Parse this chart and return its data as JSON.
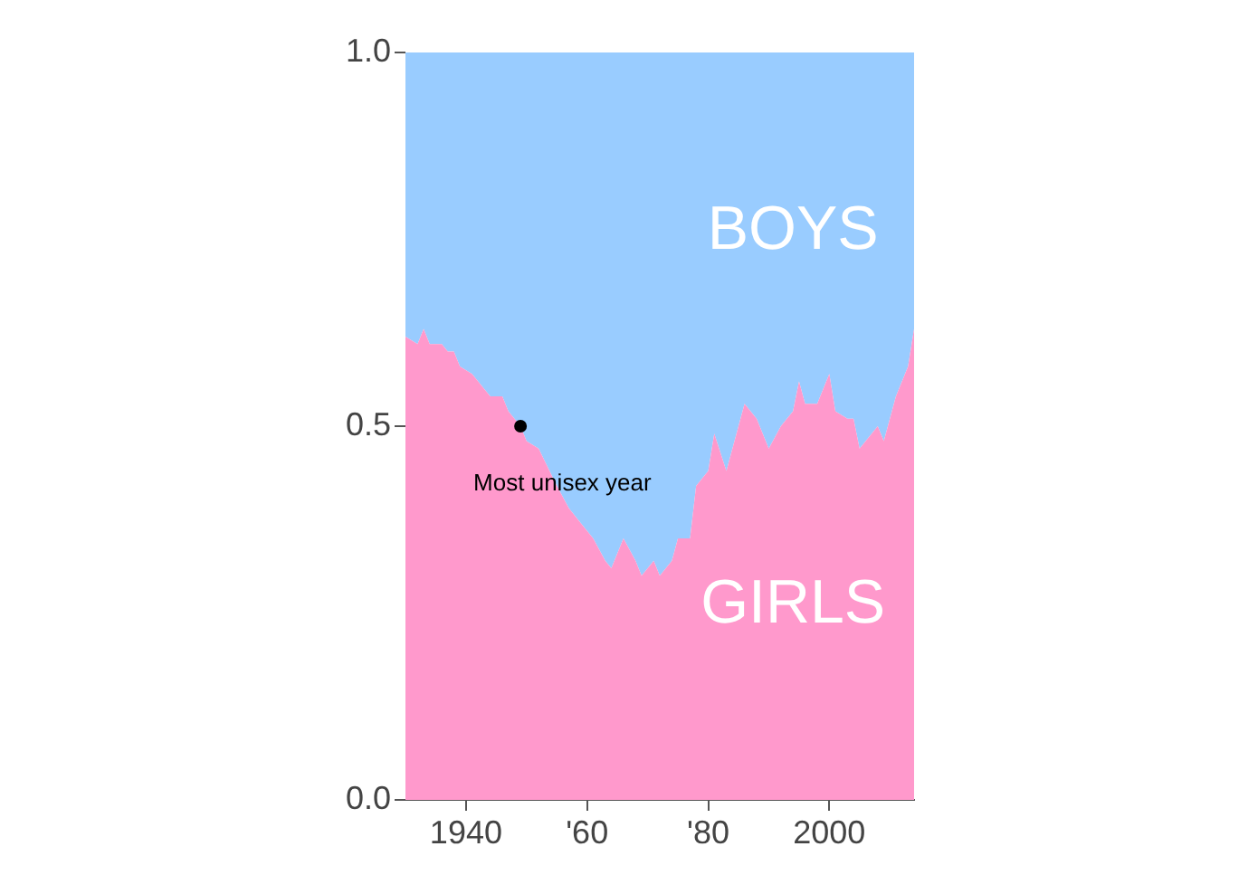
{
  "chart_data": {
    "type": "area",
    "stacked": true,
    "x": [
      1930,
      1932,
      1933,
      1934,
      1936,
      1937,
      1938,
      1939,
      1941,
      1943,
      1944,
      1946,
      1947,
      1949,
      1950,
      1952,
      1955,
      1957,
      1959,
      1961,
      1963,
      1964,
      1966,
      1968,
      1969,
      1971,
      1972,
      1974,
      1975,
      1977,
      1978,
      1980,
      1981,
      1983,
      1985,
      1986,
      1988,
      1990,
      1992,
      1994,
      1995,
      1996,
      1998,
      2000,
      2001,
      2003,
      2004,
      2005,
      2007,
      2008,
      2009,
      2011,
      2013,
      2014
    ],
    "series": [
      {
        "name": "GIRLS",
        "color": "#ff99cc",
        "values": [
          0.62,
          0.61,
          0.63,
          0.61,
          0.61,
          0.6,
          0.6,
          0.58,
          0.57,
          0.55,
          0.54,
          0.54,
          0.52,
          0.5,
          0.48,
          0.47,
          0.42,
          0.39,
          0.37,
          0.35,
          0.32,
          0.31,
          0.35,
          0.32,
          0.3,
          0.32,
          0.3,
          0.32,
          0.35,
          0.35,
          0.42,
          0.44,
          0.49,
          0.44,
          0.5,
          0.53,
          0.51,
          0.47,
          0.5,
          0.52,
          0.56,
          0.53,
          0.53,
          0.57,
          0.52,
          0.51,
          0.51,
          0.47,
          0.49,
          0.5,
          0.48,
          0.54,
          0.58,
          0.63
        ]
      },
      {
        "name": "BOYS",
        "color": "#99ccff",
        "values": [
          0.38,
          0.39,
          0.37,
          0.39,
          0.39,
          0.4,
          0.4,
          0.42,
          0.43,
          0.45,
          0.46,
          0.46,
          0.48,
          0.5,
          0.52,
          0.53,
          0.58,
          0.61,
          0.63,
          0.65,
          0.68,
          0.69,
          0.65,
          0.68,
          0.7,
          0.68,
          0.7,
          0.68,
          0.65,
          0.65,
          0.58,
          0.56,
          0.51,
          0.56,
          0.5,
          0.47,
          0.49,
          0.53,
          0.5,
          0.48,
          0.44,
          0.47,
          0.47,
          0.43,
          0.48,
          0.49,
          0.49,
          0.53,
          0.51,
          0.5,
          0.52,
          0.46,
          0.42,
          0.37
        ]
      }
    ],
    "xlim": [
      1930,
      2014
    ],
    "xticks": [
      1940,
      {
        "value": 1960,
        "label": "'60"
      },
      {
        "value": 1980,
        "label": "'80"
      },
      2000
    ],
    "ylim": [
      0,
      1
    ],
    "yticks": [
      {
        "value": 0,
        "label": "0.0"
      },
      {
        "value": 0.5,
        "label": "0.5"
      },
      {
        "value": 1,
        "label": "1.0"
      }
    ],
    "annotations": [
      {
        "text": "Most unisex year",
        "x": 1949,
        "y": 0.5
      }
    ],
    "grid": false,
    "legend": false
  }
}
